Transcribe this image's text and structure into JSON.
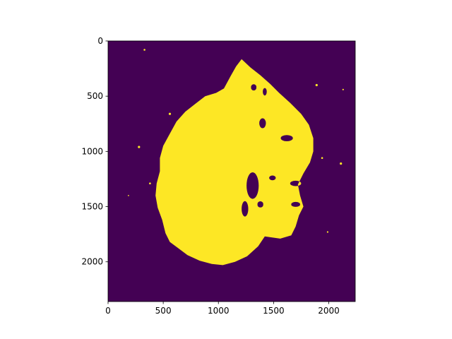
{
  "chart_data": {
    "type": "heatmap",
    "title": "",
    "xlabel": "",
    "ylabel": "",
    "xlim": [
      0,
      2240
    ],
    "ylim": [
      2360,
      0
    ],
    "y_inverted": true,
    "grid": false,
    "legend": "none",
    "x_ticks": [
      0,
      500,
      1000,
      1500,
      2000
    ],
    "x_tick_labels": [
      "0",
      "500",
      "1000",
      "1500",
      "2000"
    ],
    "y_ticks": [
      0,
      500,
      1000,
      1500,
      2000
    ],
    "y_tick_labels": [
      "0",
      "500",
      "1000",
      "1500",
      "2000"
    ],
    "colormap": "viridis",
    "values_present": [
      0,
      1
    ],
    "colors": {
      "background_value_0": "#440154",
      "mask_value_1": "#fde725"
    },
    "mask_region": {
      "description_value": 1,
      "outline": [
        [
          1210,
          165
        ],
        [
          1290,
          240
        ],
        [
          1380,
          310
        ],
        [
          1470,
          390
        ],
        [
          1550,
          470
        ],
        [
          1650,
          560
        ],
        [
          1750,
          660
        ],
        [
          1820,
          760
        ],
        [
          1860,
          880
        ],
        [
          1860,
          1000
        ],
        [
          1830,
          1100
        ],
        [
          1770,
          1200
        ],
        [
          1720,
          1300
        ],
        [
          1740,
          1400
        ],
        [
          1770,
          1500
        ],
        [
          1730,
          1580
        ],
        [
          1700,
          1680
        ],
        [
          1660,
          1760
        ],
        [
          1560,
          1790
        ],
        [
          1420,
          1770
        ],
        [
          1360,
          1860
        ],
        [
          1260,
          1950
        ],
        [
          1150,
          2000
        ],
        [
          1040,
          2030
        ],
        [
          940,
          2020
        ],
        [
          830,
          1990
        ],
        [
          720,
          1940
        ],
        [
          640,
          1880
        ],
        [
          560,
          1820
        ],
        [
          520,
          1740
        ],
        [
          490,
          1620
        ],
        [
          450,
          1510
        ],
        [
          430,
          1400
        ],
        [
          440,
          1290
        ],
        [
          470,
          1180
        ],
        [
          470,
          1060
        ],
        [
          500,
          950
        ],
        [
          560,
          840
        ],
        [
          620,
          730
        ],
        [
          700,
          640
        ],
        [
          790,
          570
        ],
        [
          880,
          500
        ],
        [
          980,
          470
        ],
        [
          1050,
          430
        ],
        [
          1110,
          320
        ],
        [
          1160,
          230
        ]
      ],
      "holes": [
        {
          "cx": 1310,
          "cy": 1310,
          "rx": 55,
          "ry": 120
        },
        {
          "cx": 1400,
          "cy": 745,
          "rx": 30,
          "ry": 45
        },
        {
          "cx": 1620,
          "cy": 880,
          "rx": 55,
          "ry": 28
        },
        {
          "cx": 1490,
          "cy": 1240,
          "rx": 30,
          "ry": 22
        },
        {
          "cx": 1240,
          "cy": 1520,
          "rx": 30,
          "ry": 70
        },
        {
          "cx": 1380,
          "cy": 1480,
          "rx": 26,
          "ry": 24
        },
        {
          "cx": 1320,
          "cy": 420,
          "rx": 24,
          "ry": 24
        },
        {
          "cx": 1420,
          "cy": 460,
          "rx": 18,
          "ry": 34
        },
        {
          "cx": 1700,
          "cy": 1290,
          "rx": 50,
          "ry": 24
        },
        {
          "cx": 1700,
          "cy": 1480,
          "rx": 40,
          "ry": 20
        }
      ],
      "specks": [
        {
          "cx": 330,
          "cy": 80,
          "r": 8
        },
        {
          "cx": 185,
          "cy": 1400,
          "r": 6
        },
        {
          "cx": 280,
          "cy": 960,
          "r": 10
        },
        {
          "cx": 560,
          "cy": 660,
          "r": 10
        },
        {
          "cx": 2130,
          "cy": 440,
          "r": 7
        },
        {
          "cx": 2110,
          "cy": 1110,
          "r": 10
        },
        {
          "cx": 1990,
          "cy": 1730,
          "r": 7
        },
        {
          "cx": 1890,
          "cy": 400,
          "r": 10
        },
        {
          "cx": 380,
          "cy": 1290,
          "r": 8
        },
        {
          "cx": 1940,
          "cy": 1060,
          "r": 8
        }
      ]
    }
  }
}
